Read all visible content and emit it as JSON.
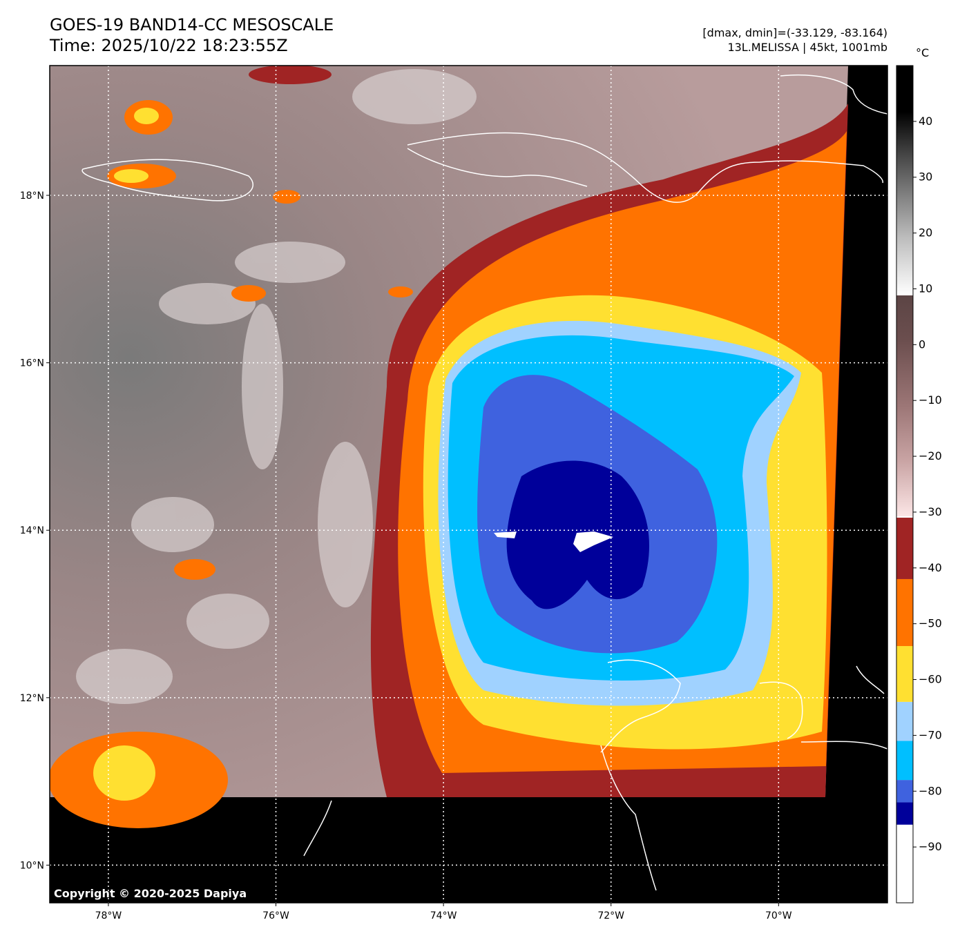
{
  "header": {
    "title_line1": "GOES-19 BAND14-CC MESOSCALE",
    "title_line2": "Time: 2025/10/22 18:23:55Z",
    "info_line1": "[dmax, dmin]=(-33.129, -83.164)",
    "info_line2": "13L.MELISSA | 45kt, 1001mb"
  },
  "map": {
    "lon_labels": [
      "78°W",
      "76°W",
      "74°W",
      "72°W",
      "70°W"
    ],
    "lat_labels": [
      "18°N",
      "16°N",
      "14°N",
      "12°N",
      "10°N"
    ],
    "lon_range": [
      -78.7,
      -68.7
    ],
    "lat_range": [
      9.55,
      19.55
    ],
    "copyright": "Copyright © 2020-2025 Dapiya"
  },
  "colorbar": {
    "unit": "°C",
    "range": [
      -100,
      50
    ],
    "tick_labels": [
      "40",
      "30",
      "20",
      "10",
      "0",
      "−10",
      "−20",
      "−30",
      "−40",
      "−50",
      "−60",
      "−70",
      "−80",
      "−90"
    ],
    "tick_values": [
      40,
      30,
      20,
      10,
      0,
      -10,
      -20,
      -30,
      -40,
      -50,
      -60,
      -70,
      -80,
      -90
    ],
    "bands": [
      {
        "from": -100,
        "to": -86,
        "color": "#ffffff"
      },
      {
        "from": -86,
        "to": -82,
        "color": "#00009a"
      },
      {
        "from": -82,
        "to": -78,
        "color": "#3f62df"
      },
      {
        "from": -78,
        "to": -71,
        "color": "#00bfff"
      },
      {
        "from": -71,
        "to": -64,
        "color": "#a0d2ff"
      },
      {
        "from": -64,
        "to": -54,
        "color": "#ffe031"
      },
      {
        "from": -54,
        "to": -42,
        "color": "#ff7300"
      },
      {
        "from": -42,
        "to": -31,
        "color": "#a02424"
      }
    ]
  },
  "colors": {
    "background_cloud": "#8c6f6f",
    "black_nodata": "#000000",
    "coastline": "#ffffff",
    "grid": "#ffffff"
  }
}
